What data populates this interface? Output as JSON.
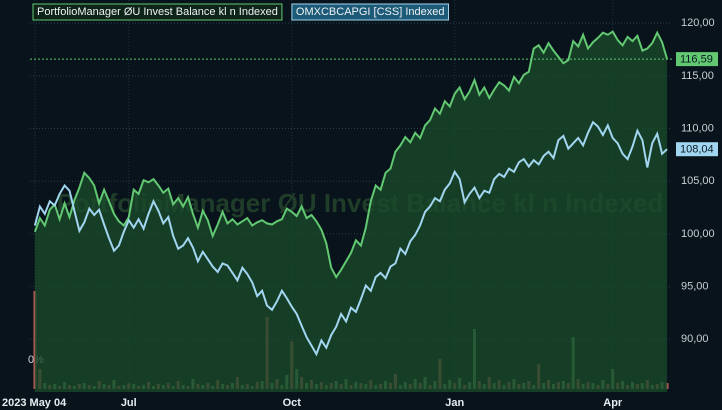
{
  "chart_data": {
    "type": "line",
    "xlim": [
      -1,
      129
    ],
    "xticks": [
      {
        "value": 0,
        "label": "2023 May 04"
      },
      {
        "value": 19,
        "label": "Jul"
      },
      {
        "value": 52,
        "label": "Oct"
      },
      {
        "value": 85,
        "label": "Jan"
      },
      {
        "value": 117,
        "label": "Apr"
      }
    ],
    "ylim": [
      85,
      122.2
    ],
    "yticks": [
      {
        "value": 90,
        "label": "90,00"
      },
      {
        "value": 95,
        "label": "95,00"
      },
      {
        "value": 100,
        "label": "100,00"
      },
      {
        "value": 105,
        "label": "105,00"
      },
      {
        "value": 110,
        "label": "110,00"
      },
      {
        "value": 115,
        "label": "115,00"
      },
      {
        "value": 120,
        "label": "120,00"
      }
    ],
    "grid": true,
    "series": [
      {
        "name": "PortfolioManager ØU Invest Balance kl n Indexed",
        "color": "#62c872",
        "fill": "#1a4a2b",
        "last": {
          "value": 116.59,
          "label": "116,59"
        },
        "values": [
          100.2,
          101.5,
          100.8,
          102.3,
          102.8,
          101.4,
          102.9,
          101.6,
          103.2,
          104.4,
          105.8,
          105.3,
          104.6,
          102.9,
          104.2,
          103.1,
          101.9,
          101.2,
          100.8,
          101.6,
          104.2,
          103.8,
          105.1,
          104.9,
          105.2,
          104.6,
          103.9,
          104.3,
          102.8,
          103.4,
          102.6,
          103.5,
          101.9,
          100.6,
          102.2,
          101.3,
          99.8,
          100.9,
          102.1,
          101.0,
          101.4,
          100.9,
          101.2,
          101.5,
          100.8,
          101.1,
          101.3,
          101.0,
          100.9,
          101.2,
          101.4,
          102.4,
          102.1,
          101.7,
          102.6,
          101.5,
          101.8,
          101.2,
          100.4,
          99.1,
          96.8,
          95.9,
          96.6,
          97.4,
          98.2,
          99.4,
          98.9,
          100.6,
          103.1,
          104.6,
          104.2,
          105.8,
          106.2,
          107.8,
          108.4,
          109.2,
          108.7,
          109.6,
          109.1,
          110.3,
          110.8,
          111.9,
          111.4,
          112.6,
          112.1,
          113.3,
          113.9,
          112.8,
          113.5,
          114.6,
          113.2,
          113.9,
          112.9,
          113.7,
          114.4,
          114.1,
          113.6,
          114.9,
          114.3,
          115.1,
          115.4,
          117.6,
          117.9,
          117.2,
          118.1,
          117.4,
          116.8,
          116.2,
          116.5,
          118.3,
          117.8,
          118.9,
          117.6,
          118.2,
          118.6,
          119.1,
          118.9,
          119.2,
          118.4,
          117.9,
          118.7,
          118.3,
          118.8,
          117.4,
          117.6,
          118.1,
          119.1,
          118.2,
          116.59
        ]
      },
      {
        "name": "OMXCBCAPGI [CSS] Indexed",
        "color": "#a2d6f0",
        "last": {
          "value": 108.04,
          "label": "108,04"
        },
        "values": [
          100.8,
          102.6,
          101.9,
          103.1,
          102.7,
          103.8,
          104.6,
          104.1,
          102.2,
          100.3,
          101.1,
          102.4,
          101.8,
          102.3,
          100.9,
          99.6,
          98.4,
          98.9,
          100.2,
          101.3,
          100.6,
          101.4,
          100.5,
          101.9,
          103.1,
          102.2,
          101.0,
          101.6,
          99.8,
          98.6,
          98.9,
          99.6,
          98.7,
          97.4,
          98.3,
          97.6,
          96.9,
          96.4,
          97.2,
          97.0,
          96.3,
          95.6,
          96.8,
          96.2,
          95.4,
          94.1,
          94.6,
          93.2,
          92.8,
          93.6,
          94.6,
          93.9,
          93.1,
          92.4,
          91.3,
          90.2,
          89.4,
          88.6,
          89.9,
          89.2,
          90.4,
          91.2,
          92.4,
          91.7,
          93.0,
          92.6,
          93.8,
          95.1,
          94.6,
          95.9,
          96.3,
          95.8,
          96.9,
          97.2,
          98.6,
          98.1,
          99.3,
          99.9,
          100.8,
          102.1,
          102.6,
          103.4,
          103.1,
          104.2,
          104.8,
          105.9,
          105.2,
          103.0,
          103.8,
          104.4,
          103.4,
          104.1,
          103.9,
          105.2,
          105.7,
          105.4,
          106.2,
          105.9,
          106.8,
          107.1,
          106.4,
          107.0,
          106.6,
          107.4,
          107.8,
          107.2,
          108.9,
          109.3,
          108.1,
          108.6,
          109.1,
          108.4,
          109.6,
          110.6,
          110.2,
          109.4,
          110.3,
          109.1,
          108.6,
          107.6,
          107.1,
          108.3,
          109.8,
          108.9,
          106.3,
          108.6,
          109.5,
          107.6,
          108.04
        ]
      }
    ],
    "volume": {
      "label": "0%",
      "vlim": [
        0,
        100
      ],
      "up_color": "#5f9a62",
      "down_color": "#b25a55",
      "up": [
        null,
        null,
        6,
        null,
        5,
        null,
        7,
        null,
        3,
        null,
        6,
        null,
        3,
        null,
        5,
        null,
        9,
        null,
        4,
        null,
        5,
        null,
        4,
        null,
        3,
        null,
        4,
        null,
        3,
        null,
        4,
        null,
        10,
        null,
        4,
        null,
        3,
        null,
        5,
        null,
        6,
        null,
        4,
        null,
        3,
        null,
        8,
        null,
        6,
        null,
        4,
        14,
        null,
        20,
        null,
        6,
        null,
        5,
        null,
        4,
        null,
        8,
        null,
        10,
        null,
        7,
        null,
        5,
        null,
        4,
        null,
        8,
        null,
        null,
        4,
        7,
        null,
        10,
        null,
        12,
        null,
        8,
        null,
        5,
        9,
        null,
        11,
        null,
        7,
        60,
        null,
        5,
        null,
        6,
        null,
        4,
        null,
        10,
        null,
        6,
        null,
        4,
        null,
        6,
        null,
        5,
        null,
        8,
        null,
        52,
        null,
        5,
        null,
        6,
        null,
        9,
        null,
        20,
        null,
        8,
        null,
        7,
        null,
        6,
        null,
        4,
        null,
        7,
        null
      ],
      "down": [
        98,
        20,
        null,
        4,
        null,
        3,
        null,
        4,
        null,
        5,
        null,
        4,
        null,
        8,
        null,
        4,
        null,
        3,
        null,
        6,
        null,
        3,
        null,
        7,
        null,
        5,
        null,
        6,
        null,
        8,
        null,
        3,
        null,
        5,
        null,
        6,
        null,
        9,
        null,
        4,
        null,
        12,
        null,
        5,
        null,
        7,
        null,
        72,
        null,
        10,
        null,
        null,
        48,
        null,
        12,
        null,
        9,
        null,
        7,
        null,
        6,
        null,
        5,
        null,
        4,
        null,
        6,
        null,
        9,
        null,
        5,
        null,
        6,
        15,
        null,
        null,
        5,
        null,
        6,
        null,
        4,
        null,
        30,
        null,
        null,
        6,
        null,
        4,
        null,
        null,
        8,
        null,
        12,
        null,
        9,
        null,
        7,
        null,
        5,
        null,
        8,
        null,
        25,
        null,
        9,
        null,
        7,
        null,
        6,
        null,
        10,
        null,
        7,
        null,
        4,
        null,
        5,
        null,
        6,
        null,
        4,
        null,
        5,
        null,
        9,
        null,
        5,
        null,
        6
      ]
    }
  }
}
